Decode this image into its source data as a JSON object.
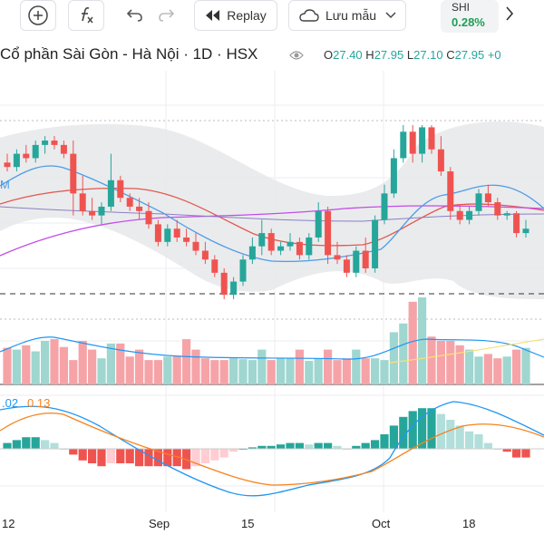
{
  "toolbar": {
    "replay_label": "Replay",
    "save_label": "Lưu mẫu",
    "ticker": {
      "symbol": "SHI",
      "change": "0.28%"
    }
  },
  "header": {
    "title": "Cổ phần Sài Gòn - Hà Nội · 1D · HSX",
    "ohlc": {
      "o_label": "O",
      "o": "27.40",
      "h_label": "H",
      "h": "27.95",
      "l_label": "L",
      "l": "27.10",
      "c_label": "C",
      "c": "27.95",
      "tail": "+0"
    }
  },
  "price_label_fragment": "M",
  "macd_legend": {
    "macd": ".02",
    "signal": "0.13"
  },
  "x_axis": [
    "12",
    "Sep",
    "15",
    "Oct",
    "18"
  ],
  "colors": {
    "up": "#26a69a",
    "down": "#ef5350",
    "bb_fill": "#e6e7ea",
    "ma_blue": "#4a9ce8",
    "ma_red": "#e2584d",
    "ma_purple": "#c14ee8"
  },
  "chart_data": {
    "type": "candlestick",
    "candles": [
      [
        27.1,
        27.3,
        26.9,
        27.0
      ],
      [
        27.0,
        27.4,
        26.9,
        27.3
      ],
      [
        27.3,
        27.5,
        27.1,
        27.2
      ],
      [
        27.2,
        27.6,
        27.1,
        27.5
      ],
      [
        27.5,
        27.7,
        27.3,
        27.6
      ],
      [
        27.6,
        27.7,
        27.4,
        27.5
      ],
      [
        27.5,
        27.6,
        27.2,
        27.3
      ],
      [
        27.3,
        27.6,
        25.9,
        26.4
      ],
      [
        26.4,
        26.8,
        25.9,
        26.0
      ],
      [
        26.0,
        26.3,
        25.8,
        25.9
      ],
      [
        25.9,
        26.2,
        25.7,
        26.1
      ],
      [
        26.1,
        27.3,
        26.0,
        26.7
      ],
      [
        26.7,
        26.8,
        26.2,
        26.3
      ],
      [
        26.3,
        26.4,
        26.0,
        26.1
      ],
      [
        26.1,
        26.3,
        25.8,
        26.0
      ],
      [
        26.0,
        26.2,
        25.6,
        25.7
      ],
      [
        25.7,
        25.8,
        25.2,
        25.3
      ],
      [
        25.3,
        25.7,
        25.2,
        25.6
      ],
      [
        25.6,
        25.8,
        25.3,
        25.4
      ],
      [
        25.4,
        25.6,
        25.2,
        25.3
      ],
      [
        25.3,
        25.5,
        25.0,
        25.1
      ],
      [
        25.1,
        25.3,
        24.8,
        24.9
      ],
      [
        24.9,
        25.0,
        24.5,
        24.6
      ],
      [
        24.6,
        24.7,
        24.0,
        24.1
      ],
      [
        24.1,
        24.5,
        24.0,
        24.4
      ],
      [
        24.4,
        25.0,
        24.3,
        24.9
      ],
      [
        24.9,
        25.4,
        24.8,
        25.2
      ],
      [
        25.2,
        25.8,
        25.0,
        25.5
      ],
      [
        25.5,
        25.6,
        25.0,
        25.1
      ],
      [
        25.1,
        25.3,
        25.0,
        25.2
      ],
      [
        25.2,
        25.5,
        25.1,
        25.3
      ],
      [
        25.3,
        25.4,
        24.9,
        25.0
      ],
      [
        25.0,
        25.5,
        24.9,
        25.4
      ],
      [
        25.4,
        26.2,
        25.3,
        26.0
      ],
      [
        26.0,
        26.1,
        24.8,
        25.0
      ],
      [
        25.0,
        25.3,
        24.8,
        24.9
      ],
      [
        24.9,
        25.0,
        24.5,
        24.6
      ],
      [
        24.6,
        25.2,
        24.5,
        25.1
      ],
      [
        25.1,
        25.4,
        24.6,
        24.7
      ],
      [
        24.7,
        25.9,
        24.6,
        25.8
      ],
      [
        25.8,
        26.6,
        25.7,
        26.4
      ],
      [
        26.4,
        27.4,
        26.3,
        27.2
      ],
      [
        27.2,
        27.95,
        27.1,
        27.8
      ],
      [
        27.8,
        27.95,
        27.1,
        27.3
      ],
      [
        27.3,
        27.95,
        27.1,
        27.9
      ],
      [
        27.9,
        27.95,
        27.3,
        27.4
      ],
      [
        27.4,
        27.7,
        26.8,
        26.9
      ],
      [
        26.9,
        27.0,
        25.8,
        26.0
      ],
      [
        26.0,
        26.1,
        25.7,
        25.8
      ],
      [
        25.8,
        26.1,
        25.7,
        26.0
      ],
      [
        26.0,
        26.5,
        25.9,
        26.4
      ],
      [
        26.4,
        26.6,
        26.1,
        26.2
      ],
      [
        26.2,
        26.3,
        25.8,
        25.9
      ],
      [
        25.9,
        26.0,
        25.8,
        25.95
      ],
      [
        25.95,
        26.0,
        25.4,
        25.5
      ],
      [
        25.5,
        25.8,
        25.4,
        25.6
      ]
    ],
    "volume": [
      0.42,
      0.4,
      0.45,
      0.38,
      0.5,
      0.52,
      0.43,
      0.28,
      0.5,
      0.4,
      0.3,
      0.47,
      0.47,
      0.32,
      0.4,
      0.28,
      0.28,
      0.32,
      0.33,
      0.52,
      0.4,
      0.3,
      0.28,
      0.28,
      0.3,
      0.29,
      0.28,
      0.4,
      0.28,
      0.3,
      0.3,
      0.4,
      0.27,
      0.3,
      0.4,
      0.28,
      0.3,
      0.4,
      0.3,
      0.3,
      0.28,
      0.6,
      0.7,
      0.95,
      1.0,
      0.55,
      0.5,
      0.5,
      0.45,
      0.4,
      0.32,
      0.35,
      0.3,
      0.32,
      0.4,
      0.42
    ],
    "macd": [
      0.02,
      0.03,
      0.04,
      0.04,
      0.03,
      0.02,
      0.0,
      -0.02,
      -0.04,
      -0.05,
      -0.06,
      -0.05,
      -0.05,
      -0.05,
      -0.06,
      -0.06,
      -0.06,
      -0.06,
      -0.06,
      -0.07,
      -0.06,
      -0.05,
      -0.04,
      -0.03,
      -0.01,
      0.0,
      0.005,
      0.01,
      0.01,
      0.015,
      0.02,
      0.02,
      0.015,
      0.02,
      0.02,
      0.01,
      0.0,
      0.01,
      0.02,
      0.03,
      0.05,
      0.08,
      0.11,
      0.13,
      0.14,
      0.14,
      0.12,
      0.1,
      0.08,
      0.06,
      0.05,
      0.02,
      0.0,
      -0.01,
      -0.03,
      -0.03
    ]
  }
}
